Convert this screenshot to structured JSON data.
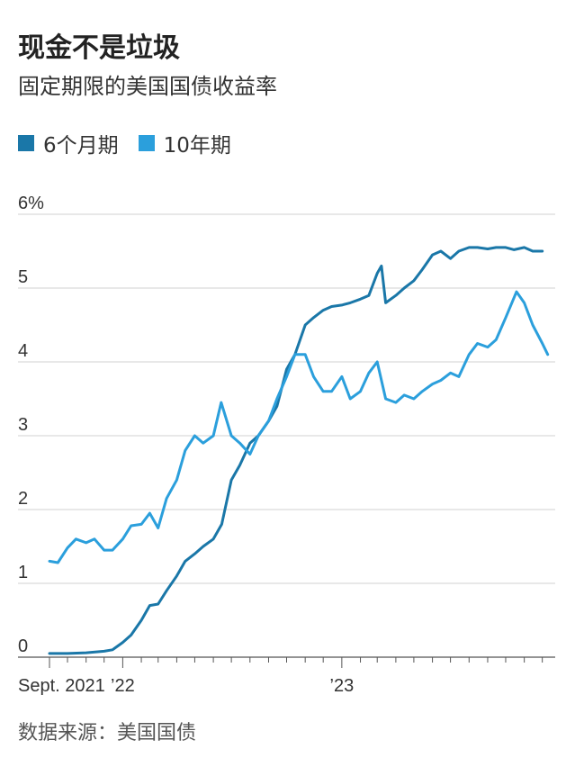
{
  "title": "现金不是垃圾",
  "subtitle": "固定期限的美国国债收益率",
  "source": "数据来源：美国国债",
  "chart_data": {
    "type": "line",
    "title": "现金不是垃圾",
    "subtitle": "固定期限的美国国债收益率",
    "y_unit": "%",
    "ylim": [
      0,
      6
    ],
    "y_ticks": [
      0,
      1,
      2,
      3,
      4,
      5,
      6
    ],
    "y_tick_labels": [
      "0",
      "1",
      "2",
      "3",
      "4",
      "5",
      "6%"
    ],
    "x_tick_labels": [
      {
        "date": "2021-09",
        "label": "Sept. 2021"
      },
      {
        "date": "2022-01",
        "label": "’22"
      },
      {
        "date": "2023-01",
        "label": "’23"
      }
    ],
    "x_range": [
      "2021-09-01",
      "2023-12-15"
    ],
    "grid": true,
    "legend_placement": "top-left",
    "series": [
      {
        "name": "6个月期",
        "color": "#1a77a8",
        "points": [
          [
            "2021-09-01",
            0.05
          ],
          [
            "2021-10-01",
            0.05
          ],
          [
            "2021-11-01",
            0.06
          ],
          [
            "2021-12-01",
            0.08
          ],
          [
            "2021-12-15",
            0.1
          ],
          [
            "2022-01-01",
            0.2
          ],
          [
            "2022-01-15",
            0.3
          ],
          [
            "2022-02-01",
            0.5
          ],
          [
            "2022-02-15",
            0.7
          ],
          [
            "2022-03-01",
            0.72
          ],
          [
            "2022-03-15",
            0.9
          ],
          [
            "2022-04-01",
            1.1
          ],
          [
            "2022-04-15",
            1.3
          ],
          [
            "2022-05-01",
            1.4
          ],
          [
            "2022-05-15",
            1.5
          ],
          [
            "2022-06-01",
            1.6
          ],
          [
            "2022-06-15",
            1.8
          ],
          [
            "2022-07-01",
            2.4
          ],
          [
            "2022-07-15",
            2.6
          ],
          [
            "2022-08-01",
            2.9
          ],
          [
            "2022-08-15",
            3.0
          ],
          [
            "2022-09-01",
            3.2
          ],
          [
            "2022-09-15",
            3.4
          ],
          [
            "2022-10-01",
            3.9
          ],
          [
            "2022-10-15",
            4.1
          ],
          [
            "2022-11-01",
            4.5
          ],
          [
            "2022-11-15",
            4.6
          ],
          [
            "2022-12-01",
            4.7
          ],
          [
            "2022-12-15",
            4.75
          ],
          [
            "2023-01-01",
            4.77
          ],
          [
            "2023-01-15",
            4.8
          ],
          [
            "2023-02-01",
            4.85
          ],
          [
            "2023-02-15",
            4.9
          ],
          [
            "2023-03-01",
            5.2
          ],
          [
            "2023-03-08",
            5.3
          ],
          [
            "2023-03-15",
            4.8
          ],
          [
            "2023-04-01",
            4.9
          ],
          [
            "2023-04-15",
            5.0
          ],
          [
            "2023-05-01",
            5.1
          ],
          [
            "2023-05-15",
            5.25
          ],
          [
            "2023-06-01",
            5.45
          ],
          [
            "2023-06-15",
            5.5
          ],
          [
            "2023-07-01",
            5.4
          ],
          [
            "2023-07-15",
            5.5
          ],
          [
            "2023-08-01",
            5.55
          ],
          [
            "2023-08-15",
            5.55
          ],
          [
            "2023-09-01",
            5.53
          ],
          [
            "2023-09-15",
            5.55
          ],
          [
            "2023-10-01",
            5.55
          ],
          [
            "2023-10-15",
            5.52
          ],
          [
            "2023-11-01",
            5.55
          ],
          [
            "2023-11-15",
            5.5
          ],
          [
            "2023-12-01",
            5.5
          ]
        ]
      },
      {
        "name": "10年期",
        "color": "#2b9fdc",
        "points": [
          [
            "2021-09-01",
            1.3
          ],
          [
            "2021-09-15",
            1.28
          ],
          [
            "2021-10-01",
            1.48
          ],
          [
            "2021-10-15",
            1.6
          ],
          [
            "2021-11-01",
            1.55
          ],
          [
            "2021-11-15",
            1.6
          ],
          [
            "2021-12-01",
            1.45
          ],
          [
            "2021-12-15",
            1.45
          ],
          [
            "2022-01-01",
            1.6
          ],
          [
            "2022-01-15",
            1.78
          ],
          [
            "2022-02-01",
            1.8
          ],
          [
            "2022-02-15",
            1.95
          ],
          [
            "2022-03-01",
            1.75
          ],
          [
            "2022-03-15",
            2.15
          ],
          [
            "2022-04-01",
            2.4
          ],
          [
            "2022-04-15",
            2.8
          ],
          [
            "2022-05-01",
            3.0
          ],
          [
            "2022-05-15",
            2.9
          ],
          [
            "2022-06-01",
            3.0
          ],
          [
            "2022-06-14",
            3.45
          ],
          [
            "2022-07-01",
            3.0
          ],
          [
            "2022-07-15",
            2.9
          ],
          [
            "2022-08-01",
            2.75
          ],
          [
            "2022-08-15",
            3.0
          ],
          [
            "2022-09-01",
            3.2
          ],
          [
            "2022-09-15",
            3.5
          ],
          [
            "2022-10-01",
            3.8
          ],
          [
            "2022-10-15",
            4.1
          ],
          [
            "2022-11-01",
            4.1
          ],
          [
            "2022-11-15",
            3.8
          ],
          [
            "2022-12-01",
            3.6
          ],
          [
            "2022-12-15",
            3.6
          ],
          [
            "2023-01-01",
            3.8
          ],
          [
            "2023-01-15",
            3.5
          ],
          [
            "2023-02-01",
            3.6
          ],
          [
            "2023-02-15",
            3.85
          ],
          [
            "2023-03-01",
            4.0
          ],
          [
            "2023-03-15",
            3.5
          ],
          [
            "2023-04-01",
            3.45
          ],
          [
            "2023-04-15",
            3.55
          ],
          [
            "2023-05-01",
            3.5
          ],
          [
            "2023-05-15",
            3.6
          ],
          [
            "2023-06-01",
            3.7
          ],
          [
            "2023-06-15",
            3.75
          ],
          [
            "2023-07-01",
            3.85
          ],
          [
            "2023-07-15",
            3.8
          ],
          [
            "2023-08-01",
            4.1
          ],
          [
            "2023-08-15",
            4.25
          ],
          [
            "2023-09-01",
            4.2
          ],
          [
            "2023-09-15",
            4.3
          ],
          [
            "2023-10-01",
            4.6
          ],
          [
            "2023-10-19",
            4.95
          ],
          [
            "2023-11-01",
            4.8
          ],
          [
            "2023-11-15",
            4.5
          ],
          [
            "2023-12-01",
            4.25
          ],
          [
            "2023-12-10",
            4.1
          ]
        ]
      }
    ]
  }
}
